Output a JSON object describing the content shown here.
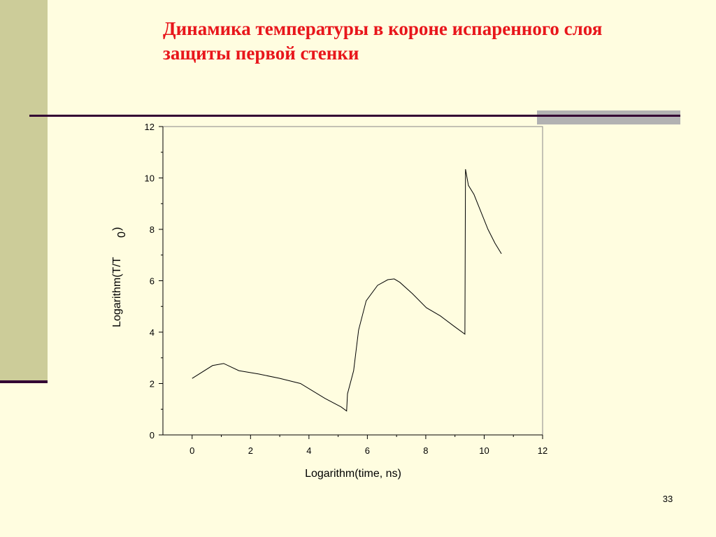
{
  "title_lines": [
    "Динамика температуры в короне испаренного слоя",
    "защиты первой стенки"
  ],
  "page_number": "33",
  "chart_data": {
    "type": "line",
    "xlabel": "Logarithm(time, ns)",
    "ylabel": "Logarithm(T/T",
    "ylabel_sub": "0",
    "ylabel_end": ")",
    "x": [
      0,
      0.7,
      1.08,
      1.6,
      2.28,
      3.0,
      3.71,
      4.55,
      5.1,
      5.29,
      5.32,
      5.53,
      5.7,
      5.96,
      6.35,
      6.7,
      6.92,
      7.11,
      7.54,
      8.02,
      8.5,
      8.98,
      9.34,
      9.36,
      9.46,
      9.65,
      9.89,
      10.13,
      10.37,
      10.59
    ],
    "values": [
      2.2,
      2.7,
      2.78,
      2.5,
      2.37,
      2.2,
      2.0,
      1.42,
      1.09,
      0.93,
      1.6,
      2.5,
      4.08,
      5.22,
      5.82,
      6.04,
      6.07,
      5.94,
      5.5,
      4.95,
      4.63,
      4.22,
      3.92,
      10.34,
      9.71,
      9.36,
      8.68,
      8.0,
      7.46,
      7.05
    ],
    "color": "#000000",
    "xlim": [
      -1,
      12
    ],
    "ylim": [
      0,
      12
    ],
    "xticks": [
      0,
      2,
      4,
      6,
      8,
      10,
      12
    ],
    "yticks": [
      0,
      2,
      4,
      6,
      8,
      10,
      12
    ]
  }
}
